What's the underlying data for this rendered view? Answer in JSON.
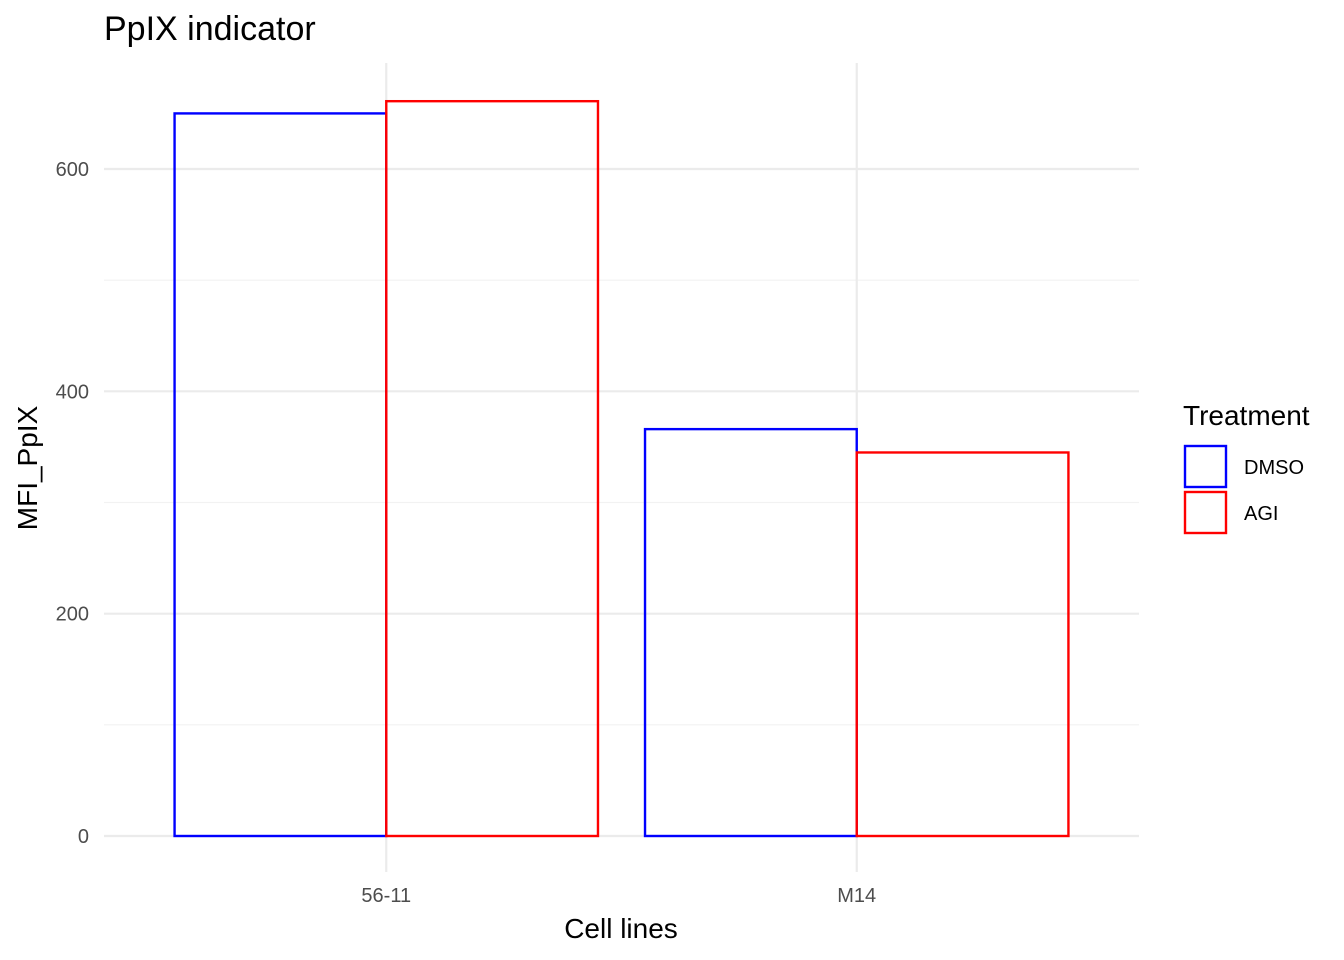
{
  "chart_data": {
    "type": "bar",
    "title": "PpIX indicator",
    "xlabel": "Cell lines",
    "ylabel": "MFI_PpIX",
    "categories": [
      "56-11",
      "M14"
    ],
    "series": [
      {
        "name": "DMSO",
        "color": "#0000ff",
        "values": [
          650,
          366
        ]
      },
      {
        "name": "AGI",
        "color": "#ff0000",
        "values": [
          661,
          345
        ]
      }
    ],
    "ylim": [
      0,
      694
    ],
    "yticks": [
      0,
      200,
      400,
      600
    ],
    "ytick_labels": [
      "0",
      "200",
      "400",
      "600"
    ],
    "fill": "none",
    "grid": true,
    "legend": {
      "title": "Treatment",
      "placement": "right"
    }
  }
}
